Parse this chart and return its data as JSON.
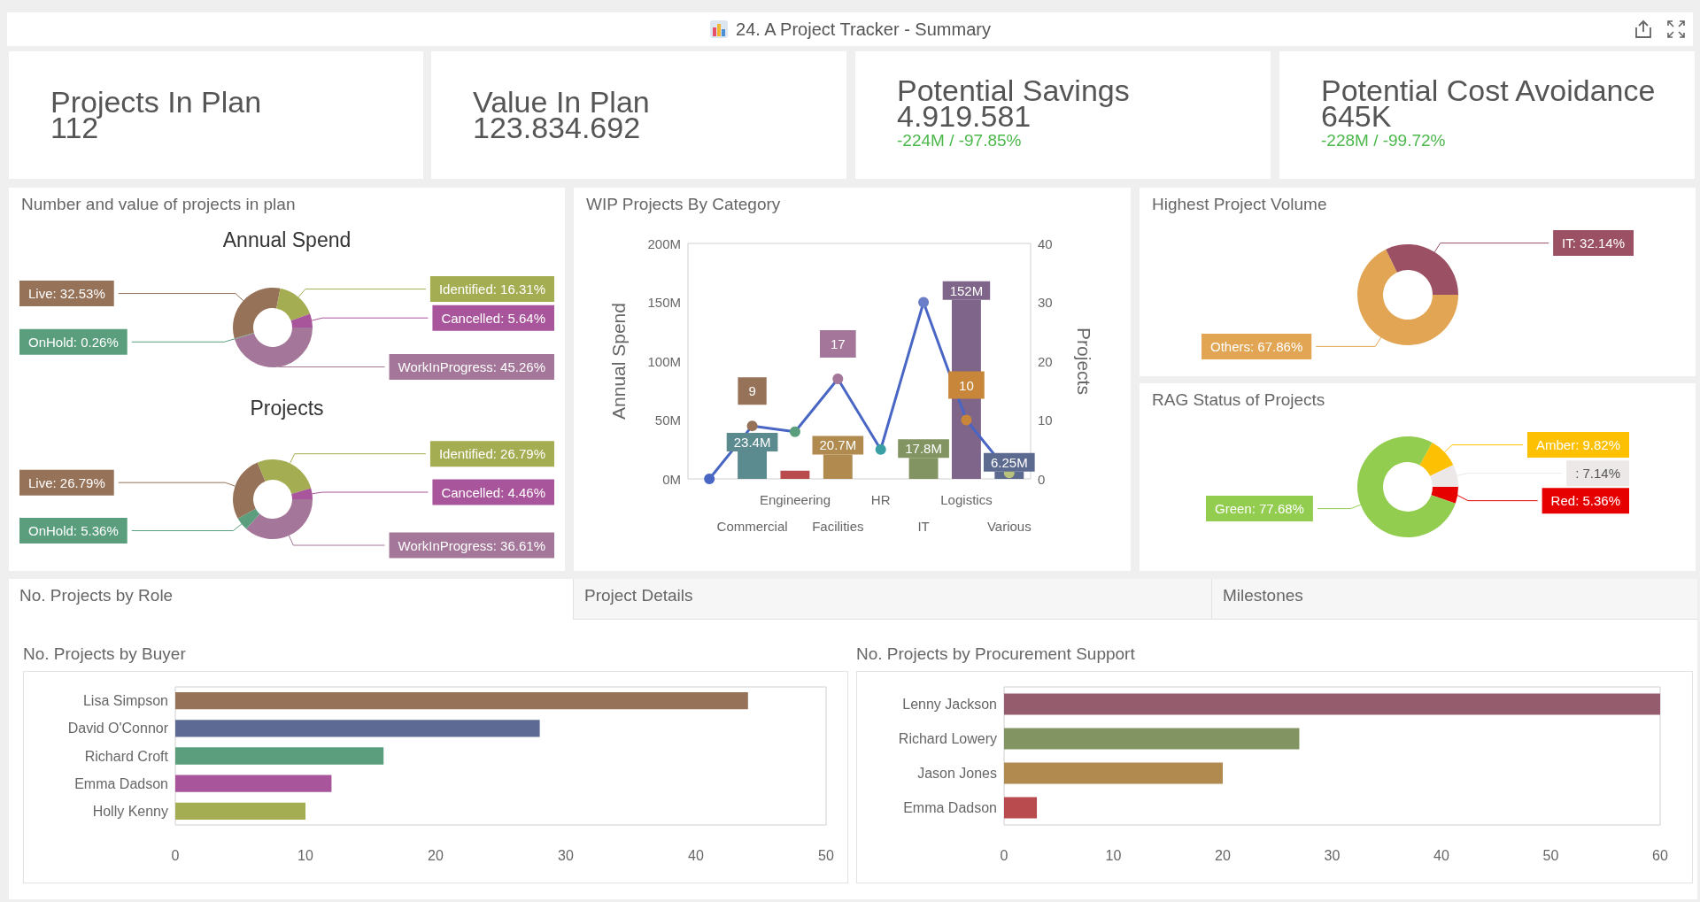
{
  "chart_data": [
    {
      "type": "other",
      "title": "24. A Project Tracker - Summary"
    },
    {
      "type": "other",
      "title": "Projects In Plan",
      "annotations": [
        "112"
      ]
    },
    {
      "type": "other",
      "title": "Value In Plan",
      "annotations": [
        "123.834.692"
      ]
    },
    {
      "type": "other",
      "title": "Potential Savings",
      "annotations": [
        "4.919.581",
        "-224M / -97.85%"
      ]
    },
    {
      "type": "other",
      "title": "Potential Cost Avoidance",
      "annotations": [
        "645K",
        "-228M / -99.72%"
      ]
    },
    {
      "type": "donut",
      "title": "Number and value of projects in plan",
      "subtitle": "Annual Spend",
      "categories": [
        "WorkInProgress",
        "OnHold",
        "Live",
        "Identified",
        "Cancelled"
      ],
      "values": [
        45.26,
        0.26,
        32.53,
        16.31,
        5.64
      ],
      "colors": [
        "#a47699",
        "#5a9e7e",
        "#967259",
        "#a5ad52",
        "#a9559b"
      ],
      "value_labels": [
        "45.26%",
        "0.26%",
        "32.53%",
        "16.31%",
        "5.64%"
      ]
    },
    {
      "type": "donut",
      "subtitle": "Projects",
      "categories": [
        "WorkInProgress",
        "OnHold",
        "Live",
        "Identified",
        "Cancelled"
      ],
      "values": [
        36.61,
        5.36,
        26.79,
        26.79,
        4.46
      ],
      "colors": [
        "#a47699",
        "#5a9e7e",
        "#967259",
        "#a5ad52",
        "#a9559b"
      ],
      "value_labels": [
        "36.61%",
        "5.36%",
        "26.79%",
        "26.79%",
        "4.46%"
      ]
    },
    {
      "type": "bar",
      "title": "WIP Projects By Category",
      "ylabel": "Annual Spend",
      "y2label": "Projects",
      "categories": [
        null,
        "Commercial",
        "Engineering",
        "Facilities",
        "HR",
        "IT",
        "Logistics",
        "Various"
      ],
      "series": [
        {
          "type": "bar",
          "colors": [
            "#5b8a8f",
            "#5b8a8f",
            "#b94a4e",
            "#b08a4f",
            "#3a9fa5",
            "#839463",
            "#7e6589",
            "#5d6a8f"
          ],
          "values": [
            null,
            23.4,
            7,
            20.7,
            null,
            17.8,
            152,
            6.25
          ],
          "value_labels": [
            null,
            "23.4M",
            null,
            "20.7M",
            null,
            "17.8M",
            "152M",
            "6.25M"
          ]
        },
        {
          "type": "line",
          "axis": "y2",
          "color": "#4a66c4",
          "colors": [
            "#4a66c4",
            "#967259",
            "#5a9e7e",
            "#a47699",
            "#3a9fa5",
            "#6b7fc9",
            "#c8863a",
            "#b9c17e"
          ],
          "values": [
            0,
            9,
            8,
            17,
            5,
            30,
            10,
            1
          ],
          "value_labels": [
            null,
            "9",
            null,
            "17",
            null,
            null,
            "10",
            null
          ]
        }
      ],
      "ylim": [
        0,
        200
      ],
      "yticks": [
        {
          "value": 0,
          "label": "0M"
        },
        {
          "value": 50,
          "label": "50M"
        },
        {
          "value": 100,
          "label": "100M"
        },
        {
          "value": 150,
          "label": "150M"
        },
        {
          "value": 200,
          "label": "200M"
        }
      ],
      "y2lim": [
        0,
        40
      ],
      "y2ticks": [
        0,
        10,
        20,
        30,
        40
      ],
      "marker": "circle",
      "line_style": "solid"
    },
    {
      "type": "donut",
      "title": "Highest Project Volume",
      "categories": [
        "Others",
        "IT"
      ],
      "values": [
        67.86,
        32.14
      ],
      "colors": [
        "#e2a553",
        "#9b5163"
      ],
      "value_labels": [
        "67.86%",
        "32.14%"
      ]
    },
    {
      "type": "donut",
      "title": "RAG Status of Projects",
      "categories": [
        "Red",
        "Green",
        "Amber",
        null
      ],
      "values": [
        5.36,
        77.68,
        9.82,
        7.14
      ],
      "colors": [
        "#e60000",
        "#92cd50",
        "#fec002",
        "#ece8e8"
      ],
      "value_labels": [
        "5.36%",
        "77.68%",
        "9.82%",
        ": 7.14%"
      ]
    },
    {
      "type": "other",
      "annotations": [
        "No. Projects by Role",
        "Project Details",
        "Milestones"
      ]
    },
    {
      "type": "bar",
      "orientation": "horizontal",
      "title": "No. Projects by Buyer",
      "categories": [
        "Lisa Simpson",
        "David O'Connor",
        "Richard Croft",
        "Emma Dadson",
        "Holly Kenny"
      ],
      "values": [
        44,
        28,
        16,
        12,
        10
      ],
      "colors": [
        "#967259",
        "#5d6a94",
        "#5a9e7e",
        "#a9559b",
        "#a5ad52"
      ],
      "xlim": [
        0,
        50
      ],
      "xticks": [
        0,
        10,
        20,
        30,
        40,
        50
      ]
    },
    {
      "type": "bar",
      "orientation": "horizontal",
      "title": "No. Projects by Procurement Support",
      "categories": [
        "Lenny Jackson",
        "Richard Lowery",
        "Jason Jones",
        "Emma Dadson"
      ],
      "values": [
        60,
        27,
        20,
        3
      ],
      "colors": [
        "#955c6e",
        "#839463",
        "#b08a4f",
        "#b94a4e"
      ],
      "xlim": [
        0,
        60
      ],
      "xticks": [
        0,
        10,
        20,
        30,
        40,
        50,
        60
      ]
    }
  ]
}
